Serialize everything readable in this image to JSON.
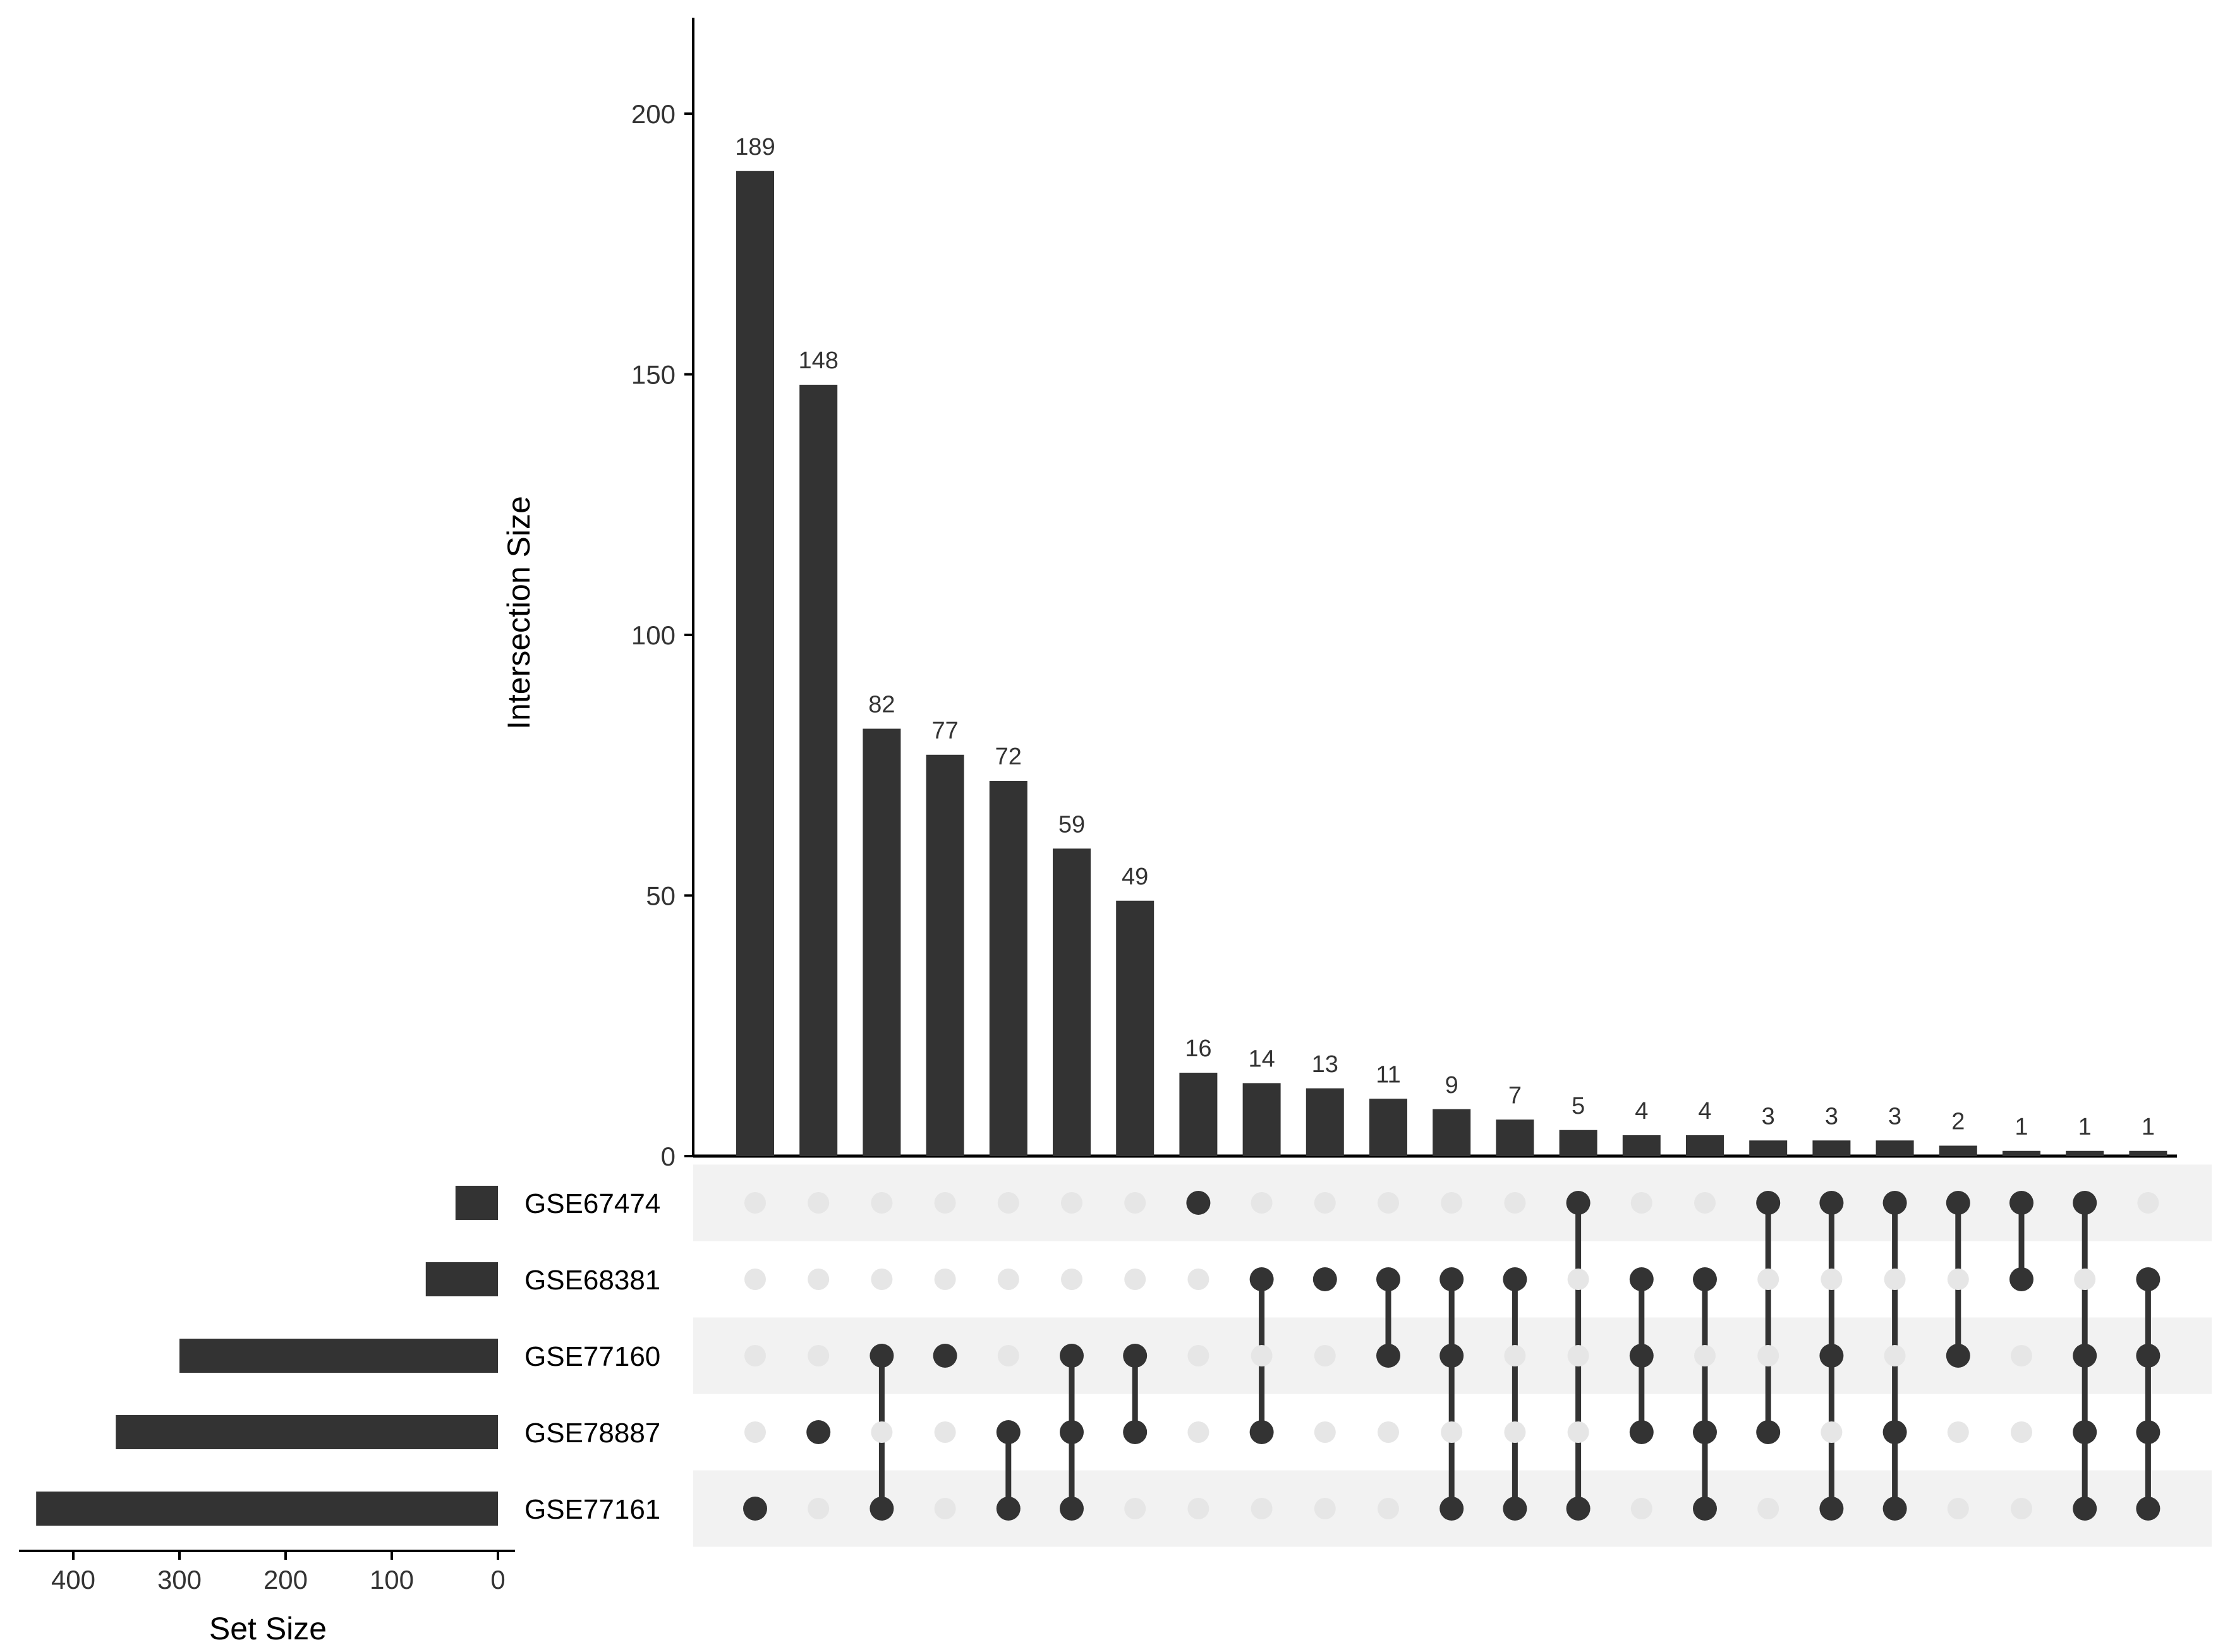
{
  "chart_data": {
    "type": "bar",
    "subtype": "upset",
    "ylabel": "Intersection Size",
    "xlabel_sets": "Set Size",
    "ylim": [
      0,
      218
    ],
    "yticks": [
      0,
      50,
      100,
      150,
      200
    ],
    "set_size_xlim": [
      450,
      0
    ],
    "set_size_ticks": [
      400,
      300,
      200,
      100,
      0
    ],
    "sets": [
      {
        "name": "GSE67474",
        "size": 40
      },
      {
        "name": "GSE68381",
        "size": 68
      },
      {
        "name": "GSE77160",
        "size": 300
      },
      {
        "name": "GSE78887",
        "size": 360
      },
      {
        "name": "GSE77161",
        "size": 435
      }
    ],
    "intersections": [
      {
        "value": 189,
        "sets": [
          "GSE77161"
        ]
      },
      {
        "value": 148,
        "sets": [
          "GSE78887"
        ]
      },
      {
        "value": 82,
        "sets": [
          "GSE77160",
          "GSE77161"
        ]
      },
      {
        "value": 77,
        "sets": [
          "GSE77160"
        ]
      },
      {
        "value": 72,
        "sets": [
          "GSE78887",
          "GSE77161"
        ]
      },
      {
        "value": 59,
        "sets": [
          "GSE77160",
          "GSE78887",
          "GSE77161"
        ]
      },
      {
        "value": 49,
        "sets": [
          "GSE77160",
          "GSE78887"
        ]
      },
      {
        "value": 16,
        "sets": [
          "GSE67474"
        ]
      },
      {
        "value": 14,
        "sets": [
          "GSE68381",
          "GSE78887"
        ]
      },
      {
        "value": 13,
        "sets": [
          "GSE68381"
        ]
      },
      {
        "value": 11,
        "sets": [
          "GSE68381",
          "GSE77160"
        ]
      },
      {
        "value": 9,
        "sets": [
          "GSE68381",
          "GSE77160",
          "GSE77161"
        ]
      },
      {
        "value": 7,
        "sets": [
          "GSE68381",
          "GSE77161"
        ]
      },
      {
        "value": 5,
        "sets": [
          "GSE67474",
          "GSE77161"
        ]
      },
      {
        "value": 4,
        "sets": [
          "GSE68381",
          "GSE77160",
          "GSE78887"
        ]
      },
      {
        "value": 4,
        "sets": [
          "GSE68381",
          "GSE78887",
          "GSE77161"
        ]
      },
      {
        "value": 3,
        "sets": [
          "GSE67474",
          "GSE78887"
        ]
      },
      {
        "value": 3,
        "sets": [
          "GSE67474",
          "GSE77160",
          "GSE77161"
        ]
      },
      {
        "value": 3,
        "sets": [
          "GSE67474",
          "GSE78887",
          "GSE77161"
        ]
      },
      {
        "value": 2,
        "sets": [
          "GSE67474",
          "GSE77160"
        ]
      },
      {
        "value": 1,
        "sets": [
          "GSE67474",
          "GSE68381"
        ]
      },
      {
        "value": 1,
        "sets": [
          "GSE67474",
          "GSE77160",
          "GSE78887",
          "GSE77161"
        ]
      },
      {
        "value": 1,
        "sets": [
          "GSE68381",
          "GSE77160",
          "GSE78887",
          "GSE77161"
        ]
      }
    ],
    "colors": {
      "bar": "#333333",
      "dot_active": "#333333",
      "dot_inactive": "#e6e6e6",
      "row_stripe": "#f2f2f2",
      "axis": "#000000"
    }
  }
}
